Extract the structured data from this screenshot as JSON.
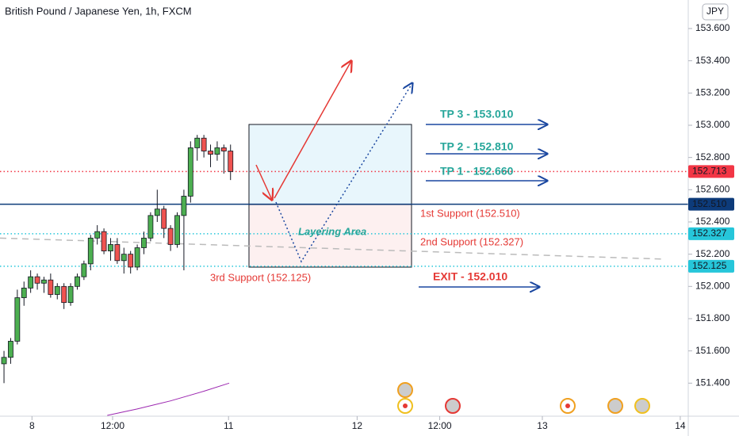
{
  "chart_data": {
    "type": "candlestick",
    "title": "British Pound / Japanese Yen, 1h, FXCM",
    "currency": "JPY",
    "x": [
      0,
      1,
      2,
      3,
      4,
      5,
      6,
      7,
      8,
      9,
      10,
      11,
      12,
      13,
      14,
      15,
      16,
      17,
      18,
      19,
      20,
      21,
      22,
      23,
      24,
      25,
      26,
      27,
      28,
      29,
      30,
      31,
      32,
      33,
      34
    ],
    "open": [
      151.52,
      151.56,
      151.66,
      151.93,
      151.99,
      152.06,
      152.02,
      152.04,
      151.95,
      152.0,
      151.9,
      152.0,
      152.06,
      152.14,
      152.3,
      152.34,
      152.22,
      152.26,
      152.16,
      152.2,
      152.12,
      152.24,
      152.3,
      152.44,
      152.48,
      152.36,
      152.26,
      152.44,
      152.56,
      152.86,
      152.92,
      152.84,
      152.82,
      152.86,
      152.84
    ],
    "high": [
      151.6,
      151.68,
      151.98,
      152.03,
      152.1,
      152.08,
      152.06,
      152.08,
      152.02,
      152.02,
      152.02,
      152.08,
      152.16,
      152.32,
      152.38,
      152.36,
      152.3,
      152.3,
      152.24,
      152.22,
      152.26,
      152.34,
      152.46,
      152.6,
      152.5,
      152.38,
      152.46,
      152.6,
      152.9,
      152.94,
      152.94,
      152.88,
      152.9,
      152.88,
      152.88
    ],
    "low": [
      151.4,
      151.52,
      151.64,
      151.88,
      151.96,
      151.98,
      151.96,
      151.93,
      151.92,
      151.86,
      151.88,
      151.98,
      152.04,
      152.1,
      152.26,
      152.2,
      152.16,
      152.14,
      152.08,
      152.08,
      152.1,
      152.2,
      152.28,
      152.4,
      152.3,
      152.22,
      152.24,
      152.1,
      152.52,
      152.78,
      152.8,
      152.74,
      152.78,
      152.7,
      152.66
    ],
    "close": [
      151.56,
      151.66,
      151.93,
      151.99,
      152.06,
      152.02,
      152.04,
      151.95,
      152.0,
      151.9,
      152.0,
      152.06,
      152.14,
      152.3,
      152.34,
      152.22,
      152.26,
      152.16,
      152.2,
      152.12,
      152.24,
      152.3,
      152.44,
      152.48,
      152.36,
      152.26,
      152.44,
      152.56,
      152.86,
      152.92,
      152.84,
      152.82,
      152.86,
      152.84,
      152.713
    ],
    "up_color": "#4caf50",
    "down_color": "#ef5350",
    "ma": {
      "color": "#9c27b0",
      "x": [
        15.5,
        20,
        25,
        30,
        33.8
      ],
      "values": [
        151.2,
        151.24,
        151.29,
        151.35,
        151.4
      ]
    },
    "trend": {
      "color": "#bbbbbb",
      "x": [
        -0.6,
        98.7
      ],
      "values": [
        152.3,
        152.17
      ]
    },
    "levels": [
      {
        "value": 152.713,
        "label": "152.713",
        "color": "#f23645",
        "text_color": "#ffffff",
        "style": "dotted"
      },
      {
        "value": 152.51,
        "label": "152.510",
        "color": "#0d3b7a",
        "text_color": "#ffffff",
        "style": "solid"
      },
      {
        "value": 152.327,
        "label": "152.327",
        "color": "#26c6da",
        "text_color": "#131722",
        "style": "dotted"
      },
      {
        "value": 152.125,
        "label": "152.125",
        "color": "#26c6da",
        "text_color": "#131722",
        "style": "dotted"
      }
    ],
    "annotations": [
      "TP 3 - 153.010",
      "TP 2 - 152.810",
      "TP 1 - 152.660",
      "1st Support (152.510)",
      "Layering Area",
      "2nd Support (152.327)",
      "3rd Support (152.125)",
      "EXIT - 152.010"
    ],
    "xlim": [
      -0.6,
      102.7
    ],
    "xticks": [
      {
        "value": 4.2,
        "label": "8"
      },
      {
        "value": 16.3,
        "label": "12:00"
      },
      {
        "value": 33.7,
        "label": "11"
      },
      {
        "value": 53,
        "label": "12"
      },
      {
        "value": 65.4,
        "label": "12:00"
      },
      {
        "value": 80.8,
        "label": "13"
      },
      {
        "value": 101.5,
        "label": "14"
      }
    ],
    "ylim": [
      151.195,
      153.777
    ],
    "yticks": [
      {
        "value": 151.4,
        "label": "151.400"
      },
      {
        "value": 151.6,
        "label": "151.600"
      },
      {
        "value": 151.8,
        "label": "151.800"
      },
      {
        "value": 152.0,
        "label": "152.000"
      },
      {
        "value": 152.2,
        "label": "152.200"
      },
      {
        "value": 152.4,
        "label": "152.400"
      },
      {
        "value": 152.6,
        "label": "152.600"
      },
      {
        "value": 152.8,
        "label": "152.800"
      },
      {
        "value": 153.0,
        "label": "153.000"
      },
      {
        "value": 153.2,
        "label": "153.200"
      },
      {
        "value": 153.4,
        "label": "153.400"
      },
      {
        "value": 153.6,
        "label": "153.600"
      }
    ]
  }
}
